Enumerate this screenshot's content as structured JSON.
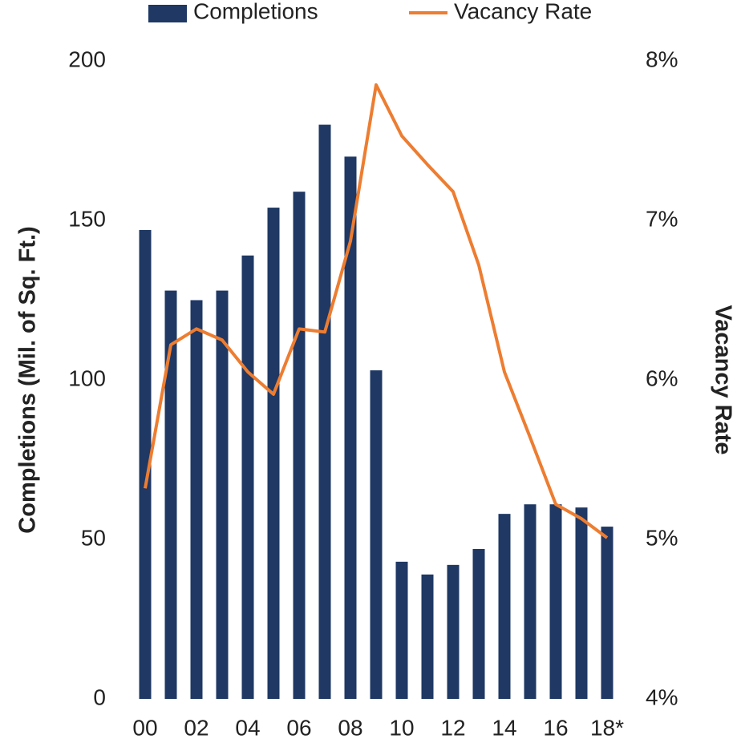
{
  "chart_data": {
    "type": "bar-line",
    "categories": [
      "00",
      null,
      "02",
      null,
      "04",
      null,
      "06",
      null,
      "08",
      null,
      "10",
      null,
      "12",
      null,
      "14",
      null,
      "16",
      null,
      "18*"
    ],
    "series": [
      {
        "name": "Completions",
        "color": "#1f3864",
        "type": "bar",
        "values": [
          147,
          128,
          125,
          128,
          139,
          154,
          159,
          180,
          170,
          103,
          43,
          39,
          42,
          47,
          58,
          61,
          61,
          60,
          54
        ]
      },
      {
        "name": "Vacancy Rate",
        "color": "#ed7d31",
        "type": "line",
        "axis": "y2",
        "values": [
          5.32,
          6.22,
          6.32,
          6.25,
          6.05,
          5.91,
          6.32,
          6.3,
          6.87,
          7.85,
          7.53,
          7.35,
          7.18,
          6.72,
          6.05,
          5.64,
          5.22,
          5.13,
          5.01
        ]
      }
    ],
    "ylabel": "Completions (Mil. of Sq. Ft.)",
    "y2label": "Vacancy Rate",
    "ylim": [
      0,
      200
    ],
    "yticks": [
      0,
      50,
      100,
      150,
      200
    ],
    "y2lim": [
      4,
      8
    ],
    "y2ticks": [
      {
        "value": 4,
        "label": "4%"
      },
      {
        "value": 5,
        "label": "5%"
      },
      {
        "value": 6,
        "label": "6%"
      },
      {
        "value": 7,
        "label": "7%"
      },
      {
        "value": 8,
        "label": "8%"
      }
    ],
    "legend": "top"
  }
}
